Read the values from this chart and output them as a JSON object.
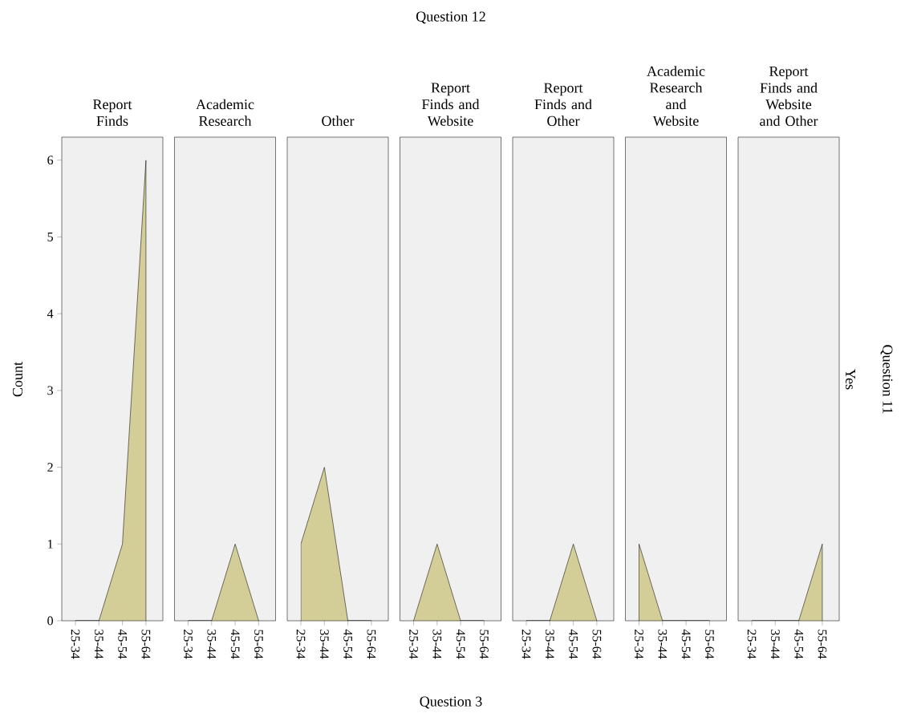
{
  "chart_data": [
    {
      "type": "area",
      "title": "Report Finds",
      "ylabel": "Count",
      "categories": [
        "25-34",
        "35-44",
        "45-54",
        "55-64"
      ],
      "values": [
        0,
        0,
        1,
        6
      ],
      "color": "#d3ce97",
      "ylim": [
        0,
        6.3
      ],
      "yticks": [
        0,
        1,
        2,
        3,
        4,
        5,
        6
      ],
      "grid": false,
      "annotations": [
        "Question 12",
        "Question 11",
        "Yes"
      ]
    },
    {
      "type": "area",
      "title": "Academic Research",
      "categories": [
        "25-34",
        "35-44",
        "45-54",
        "55-64"
      ],
      "values": [
        0,
        0,
        1,
        0
      ],
      "color": "#d3ce97",
      "ylim": [
        0,
        6.3
      ],
      "tick_labels": "x",
      "grid": false
    },
    {
      "type": "area",
      "title": "Other",
      "categories": [
        "25-34",
        "35-44",
        "45-54",
        "55-64"
      ],
      "values": [
        1,
        2,
        0,
        0
      ],
      "color": "#d3ce97",
      "ylim": [
        0,
        6.3
      ],
      "tick_labels": "x",
      "grid": false
    },
    {
      "type": "area",
      "title": "Report Finds and Website",
      "xlabel": "Question 3",
      "categories": [
        "25-34",
        "35-44",
        "45-54",
        "55-64"
      ],
      "values": [
        0,
        1,
        0,
        0
      ],
      "color": "#d3ce97",
      "ylim": [
        0,
        6.3
      ],
      "tick_labels": "x",
      "grid": false
    },
    {
      "type": "area",
      "title": "Report Finds and Other",
      "categories": [
        "25-34",
        "35-44",
        "45-54",
        "55-64"
      ],
      "values": [
        0,
        0,
        1,
        0
      ],
      "color": "#d3ce97",
      "ylim": [
        0,
        6.3
      ],
      "tick_labels": "x",
      "grid": false
    },
    {
      "type": "area",
      "title": "Academic Research and Website",
      "categories": [
        "25-34",
        "35-44",
        "45-54",
        "55-64"
      ],
      "values": [
        1,
        0,
        0,
        0
      ],
      "color": "#d3ce97",
      "ylim": [
        0,
        6.3
      ],
      "tick_labels": "x",
      "grid": false
    },
    {
      "type": "area",
      "title": "Report Finds and Website and Other",
      "categories": [
        "25-34",
        "35-44",
        "45-54",
        "55-64"
      ],
      "values": [
        0,
        0,
        0,
        1
      ],
      "color": "#d3ce97",
      "ylim": [
        0,
        6.3
      ],
      "tick_labels": "x",
      "grid": false
    }
  ]
}
